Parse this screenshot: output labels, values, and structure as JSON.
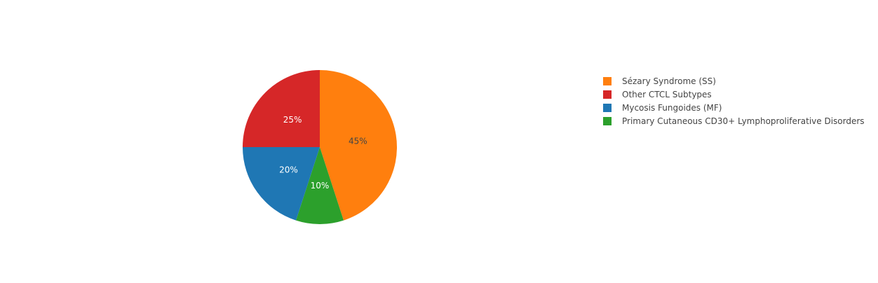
{
  "chart_data": {
    "type": "pie",
    "title": "",
    "direction": "clockwise",
    "start_angle": "top",
    "slices": [
      {
        "label": "Sézary Syndrome (SS)",
        "value": 45,
        "text": "45%",
        "color": "#ff7f0e",
        "text_color": "#444444"
      },
      {
        "label": "Primary Cutaneous CD30+ Lymphoproliferative Disorders",
        "value": 10,
        "text": "10%",
        "color": "#2ca02c",
        "text_color": "#ffffff"
      },
      {
        "label": "Mycosis Fungoides (MF)",
        "value": 20,
        "text": "20%",
        "color": "#1f77b4",
        "text_color": "#ffffff"
      },
      {
        "label": "Other CTCL Subtypes",
        "value": 25,
        "text": "25%",
        "color": "#d62728",
        "text_color": "#ffffff"
      }
    ],
    "legend": {
      "position": "right",
      "order": [
        "Sézary Syndrome (SS)",
        "Other CTCL Subtypes",
        "Mycosis Fungoides (MF)",
        "Primary Cutaneous CD30+ Lymphoproliferative Disorders"
      ]
    }
  }
}
